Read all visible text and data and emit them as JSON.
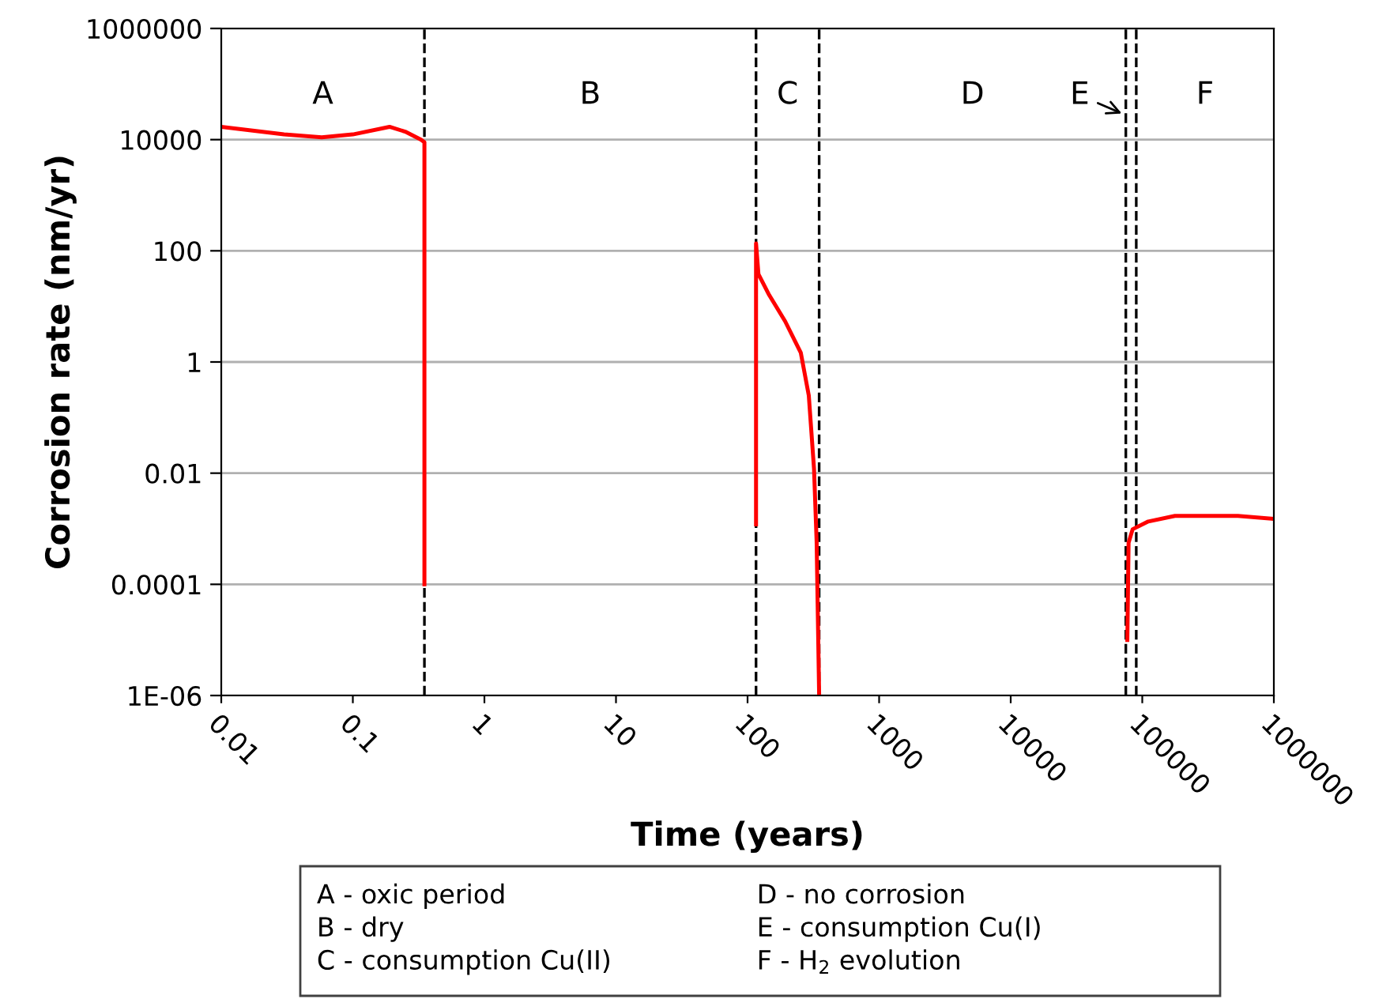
{
  "chart_data": {
    "type": "line",
    "xlabel": "Time (years)",
    "ylabel": "Corrosion rate (nm/yr)",
    "log": "xy",
    "xlim": [
      0.01,
      1000000
    ],
    "xticks": [
      0.01,
      0.1,
      1,
      10,
      100,
      1000,
      10000,
      100000,
      1000000
    ],
    "ylim": [
      1e-06,
      1000000
    ],
    "yticks": [
      {
        "value": 1000000,
        "label": "1000000"
      },
      {
        "value": 10000,
        "label": "10000"
      },
      {
        "value": 100,
        "label": "100"
      },
      {
        "value": 1,
        "label": "1"
      },
      {
        "value": 0.01,
        "label": "0.01"
      },
      {
        "value": 0.0001,
        "label": "0.0001"
      },
      {
        "value": 1e-06,
        "label": "1E-06"
      }
    ],
    "grid": "y",
    "legend": false,
    "marker": "none",
    "line_style": "solid",
    "series": [
      {
        "color": "#ff0000",
        "x": [
          0.01,
          0.03,
          0.058,
          0.1,
          0.19,
          0.25,
          0.33,
          0.35,
          0.35
        ],
        "values": [
          17000,
          12400,
          11000,
          12400,
          17000,
          13900,
          10000,
          9000,
          0.0001
        ]
      },
      {
        "color": "#ff0000",
        "x": [
          116,
          116,
          121,
          146,
          193,
          254,
          292,
          320,
          335,
          350
        ],
        "values": [
          0.0012,
          136,
          38,
          16,
          5.4,
          1.46,
          0.25,
          0.012,
          0.00058,
          1e-06
        ]
      },
      {
        "color": "#ff0000",
        "x": [
          77000,
          78700,
          84500,
          111000,
          177000,
          533000,
          1000000
        ],
        "values": [
          1e-05,
          0.00056,
          0.00098,
          0.00135,
          0.0017,
          0.0017,
          0.0015
        ]
      }
    ],
    "ref_lines": [
      {
        "axis": "x",
        "value": 0.35,
        "color": "#000000",
        "line_style": "dashed"
      },
      {
        "axis": "x",
        "value": 116,
        "color": "#000000",
        "line_style": "dashed"
      },
      {
        "axis": "x",
        "value": 350,
        "color": "#000000",
        "line_style": "dashed"
      },
      {
        "axis": "x",
        "value": 75000,
        "color": "#000000",
        "line_style": "dashed"
      },
      {
        "axis": "x",
        "value": 90000,
        "color": "#000000",
        "line_style": "dashed"
      }
    ],
    "annotations": [
      "A",
      "B",
      "C",
      "D",
      "E",
      "F",
      "A - oxic period",
      "B - dry",
      "C - consumption Cu(II)",
      "D - no corrosion",
      "E - consumption Cu(I)",
      "F - H$_{2}$ evolution"
    ]
  }
}
